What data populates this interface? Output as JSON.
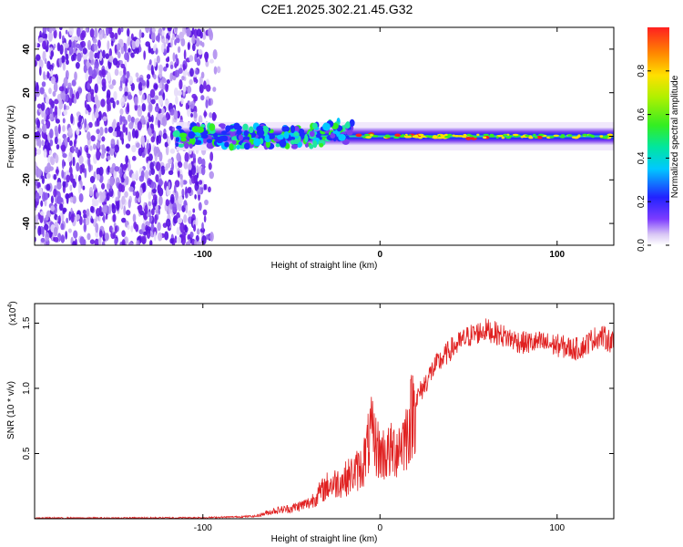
{
  "title": "C2E1.2025.302.21.45.G32",
  "chart_data": [
    {
      "type": "heatmap",
      "name": "spectrogram",
      "xlabel": "Height of straight line (km)",
      "ylabel": "Frequency (Hz)",
      "xlim": [
        -195,
        132
      ],
      "ylim": [
        -50,
        50
      ],
      "xticks": [
        -100,
        0,
        100
      ],
      "xtick_labels": [
        "-100",
        "0",
        "100"
      ],
      "yticks": [
        -40,
        -20,
        0,
        20,
        40
      ],
      "ytick_labels": [
        "-40",
        "-20",
        "0",
        "20",
        "40"
      ],
      "colorbar": {
        "label": "Normalized spectral amplitude",
        "range": [
          0,
          1
        ],
        "ticks": [
          0.0,
          0.2,
          0.4,
          0.6,
          0.8
        ],
        "tick_labels": [
          "0.0",
          "0.2",
          "0.4",
          "0.6",
          "0.8"
        ],
        "colormap": "rainbow"
      },
      "regions": [
        {
          "description": "noise",
          "x_range": [
            -195,
            -90
          ],
          "freq_range": [
            -50,
            50
          ],
          "amplitude": 0.12
        },
        {
          "description": "signal",
          "x_range": [
            -115,
            132
          ],
          "freq_center": 0,
          "freq_halfwidth": 4,
          "amplitude_max": 0.95
        }
      ]
    },
    {
      "type": "line",
      "name": "snr",
      "xlabel": "Height of straight line (km)",
      "ylabel": "SNR (10 * v/v)",
      "y_scale_label": "(x10",
      "y_scale_exp": "4",
      "xlim": [
        -195,
        132
      ],
      "ylim": [
        0,
        16500
      ],
      "xticks": [
        -100,
        0,
        100
      ],
      "xtick_labels": [
        "-100",
        "0",
        "100"
      ],
      "yticks": [
        5000,
        10000,
        15000
      ],
      "ytick_labels": [
        "0.5",
        "1.0",
        "1.5"
      ],
      "color": "#e02020",
      "series": [
        {
          "name": "SNR",
          "x": [
            -195,
            -150,
            -100,
            -80,
            -70,
            -60,
            -50,
            -40,
            -30,
            -20,
            -15,
            -10,
            -5,
            0,
            5,
            10,
            15,
            20,
            30,
            40,
            50,
            60,
            70,
            80,
            90,
            100,
            110,
            115,
            120,
            125,
            132
          ],
          "y": [
            50,
            50,
            80,
            150,
            200,
            600,
            800,
            1200,
            2500,
            3000,
            3500,
            4000,
            6500,
            5000,
            5000,
            5500,
            6500,
            9000,
            11500,
            13000,
            14000,
            14500,
            14000,
            13500,
            13500,
            13300,
            13000,
            13200,
            13800,
            14000,
            13500
          ]
        }
      ]
    }
  ]
}
